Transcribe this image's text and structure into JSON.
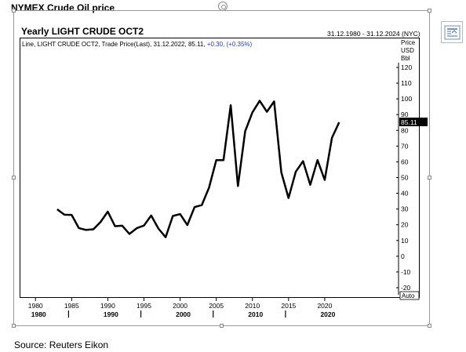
{
  "page": {
    "title": "NYMEX Crude Oil price",
    "source": "Source: Reuters Eikon",
    "layout_icon": "layout-options-icon"
  },
  "chart_data": {
    "type": "line",
    "title": "Yearly LIGHT CRUDE OCT2",
    "date_range": "31.12.1980 - 31.12.2024 (NYC)",
    "legend": {
      "text": "Line, LIGHT CRUDE OCT2, Trade Price(Last), 31.12.2022, 85.11,",
      "change": "+0.30, (+0.35%)"
    },
    "ylabel": [
      "Price",
      "USD",
      "Bbl"
    ],
    "ylim": [
      -20,
      120
    ],
    "yticks": [
      -20,
      -10,
      0,
      10,
      20,
      30,
      40,
      50,
      60,
      70,
      80,
      90,
      100,
      110,
      120
    ],
    "xlim": [
      1979,
      2025
    ],
    "xticks": [
      1980,
      1985,
      1990,
      1995,
      2000,
      2005,
      2010,
      2015,
      2020
    ],
    "decades": [
      1980,
      1990,
      2000,
      2010,
      2020
    ],
    "last_value_label": "85.11",
    "auto_label": "Auto",
    "line_color": "#000000",
    "grid": false,
    "series": [
      {
        "x": [
          1983,
          1984,
          1985,
          1986,
          1987,
          1988,
          1989,
          1990,
          1991,
          1992,
          1993,
          1994,
          1995,
          1996,
          1997,
          1998,
          1999,
          2000,
          2001,
          2002,
          2003,
          2004,
          2005,
          2006,
          2007,
          2008,
          2009,
          2010,
          2011,
          2012,
          2013,
          2014,
          2015,
          2016,
          2017,
          2018,
          2019,
          2020,
          2021,
          2022
        ],
        "values": [
          29.8,
          26.4,
          26.3,
          17.9,
          16.7,
          17.1,
          21.8,
          28.4,
          19.1,
          19.4,
          14.2,
          17.8,
          19.5,
          25.9,
          17.6,
          12.1,
          25.6,
          26.8,
          19.8,
          31.2,
          32.5,
          43.5,
          61.1,
          61.1,
          96.0,
          44.6,
          79.4,
          91.4,
          98.8,
          91.8,
          98.4,
          53.3,
          37.0,
          53.7,
          60.4,
          45.4,
          61.1,
          48.5,
          75.2,
          85.11
        ]
      }
    ]
  }
}
